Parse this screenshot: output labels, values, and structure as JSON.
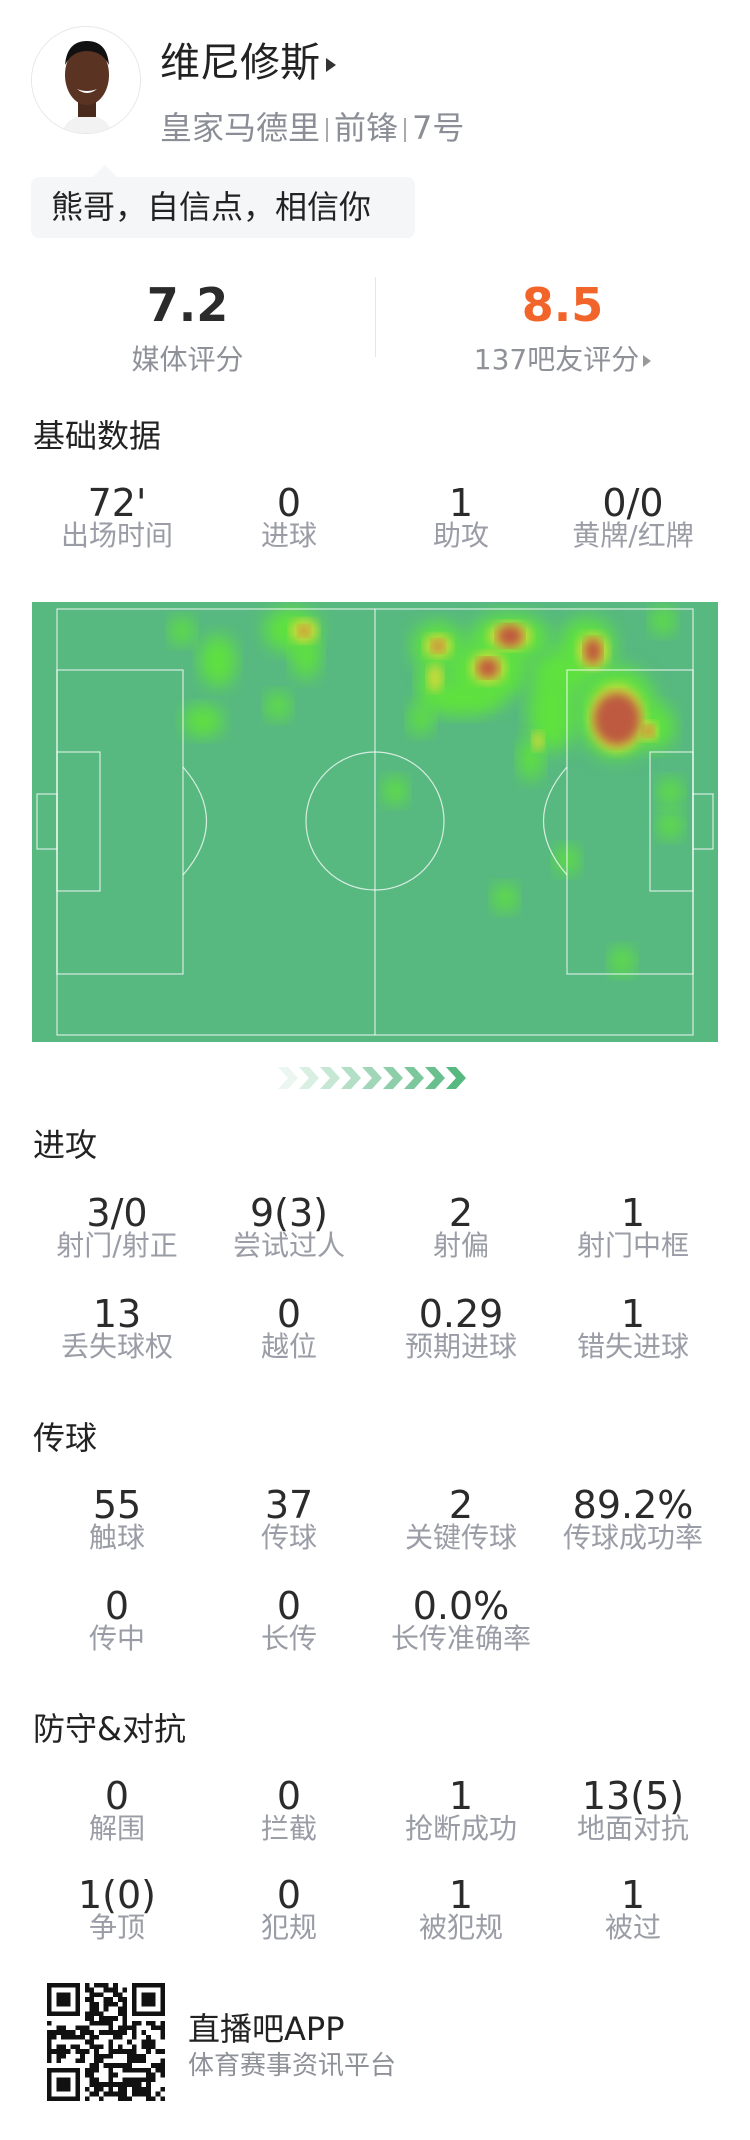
{
  "player": {
    "name": "维尼修斯",
    "team": "皇家马德里",
    "position": "前锋",
    "number": "7号",
    "quote": "熊哥，自信点，相信你"
  },
  "ratings": {
    "media": {
      "value": "7.2",
      "label": "媒体评分"
    },
    "fans": {
      "value": "8.5",
      "label": "137吧友评分",
      "color": "#f2652a"
    }
  },
  "sections": {
    "basic": {
      "title": "基础数据",
      "rows": [
        [
          {
            "v": "72'",
            "l": "出场时间"
          },
          {
            "v": "0",
            "l": "进球"
          },
          {
            "v": "1",
            "l": "助攻"
          },
          {
            "v": "0/0",
            "l": "黄牌/红牌"
          }
        ]
      ]
    },
    "attack": {
      "title": "进攻",
      "rows": [
        [
          {
            "v": "3/0",
            "l": "射门/射正"
          },
          {
            "v": "9(3)",
            "l": "尝试过人"
          },
          {
            "v": "2",
            "l": "射偏"
          },
          {
            "v": "1",
            "l": "射门中框"
          }
        ],
        [
          {
            "v": "13",
            "l": "丢失球权"
          },
          {
            "v": "0",
            "l": "越位"
          },
          {
            "v": "0.29",
            "l": "预期进球"
          },
          {
            "v": "1",
            "l": "错失进球"
          }
        ]
      ]
    },
    "passing": {
      "title": "传球",
      "rows": [
        [
          {
            "v": "55",
            "l": "触球"
          },
          {
            "v": "37",
            "l": "传球"
          },
          {
            "v": "2",
            "l": "关键传球"
          },
          {
            "v": "89.2%",
            "l": "传球成功率"
          }
        ],
        [
          {
            "v": "0",
            "l": "传中"
          },
          {
            "v": "0",
            "l": "长传"
          },
          {
            "v": "0.0%",
            "l": "长传准确率"
          }
        ]
      ]
    },
    "defense": {
      "title": "防守&对抗",
      "rows": [
        [
          {
            "v": "0",
            "l": "解围"
          },
          {
            "v": "0",
            "l": "拦截"
          },
          {
            "v": "1",
            "l": "抢断成功"
          },
          {
            "v": "13(5)",
            "l": "地面对抗"
          }
        ],
        [
          {
            "v": "1(0)",
            "l": "争顶"
          },
          {
            "v": "0",
            "l": "犯规"
          },
          {
            "v": "1",
            "l": "被犯规"
          },
          {
            "v": "1",
            "l": "被过"
          }
        ]
      ]
    }
  },
  "heatmap": {
    "pitch_color": "#57b880",
    "attack_direction": "right"
  },
  "footer": {
    "app": "直播吧APP",
    "slogan": "体育赛事资讯平台"
  }
}
